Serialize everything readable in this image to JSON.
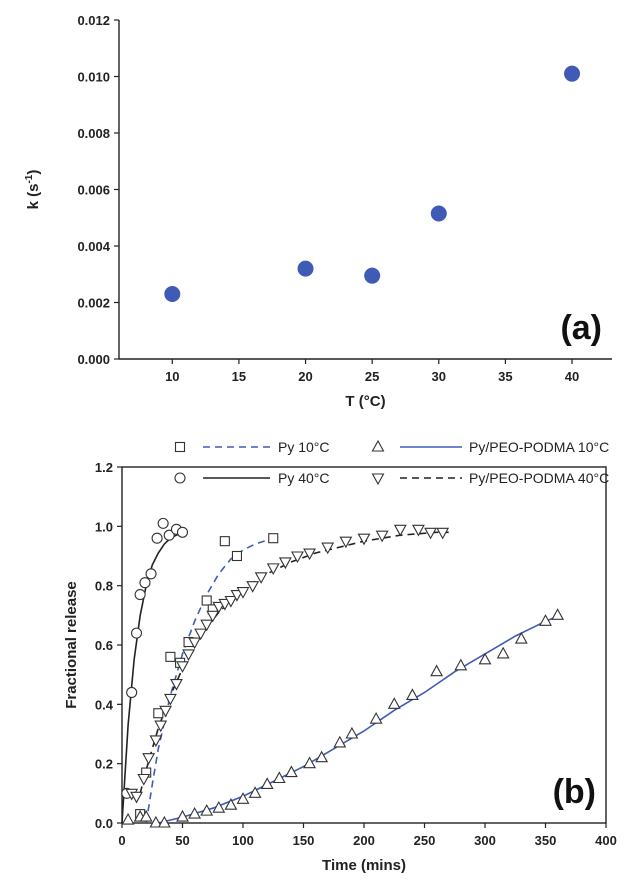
{
  "chart_data": [
    {
      "type": "scatter",
      "panel_label": "(a)",
      "xlabel": "T (°C)",
      "ylabel": "k (s-1)",
      "ylabel_base": "k (s",
      "ylabel_sup": "-1",
      "ylabel_close": ")",
      "xlim": [
        6,
        43
      ],
      "ylim": [
        0,
        0.012
      ],
      "xticks": [
        10,
        15,
        20,
        25,
        30,
        35,
        40
      ],
      "xtick_labels": [
        "10",
        "15",
        "20",
        "25",
        "30",
        "35",
        "40"
      ],
      "yticks": [
        0,
        0.002,
        0.004,
        0.006,
        0.008,
        0.01,
        0.012
      ],
      "ytick_labels": [
        "0.000",
        "0.002",
        "0.004",
        "0.006",
        "0.008",
        "0.010",
        "0.012"
      ],
      "grid": false,
      "marker_color": "#3f5bb5",
      "x": [
        10,
        20,
        25,
        30,
        40
      ],
      "y": [
        0.0023,
        0.0032,
        0.00295,
        0.00515,
        0.0101
      ]
    },
    {
      "type": "scatter",
      "panel_label": "(b)",
      "xlabel": "Time (mins)",
      "ylabel": "Fractional release",
      "xlim": [
        0,
        400
      ],
      "ylim": [
        0,
        1.2
      ],
      "xticks": [
        0,
        50,
        100,
        150,
        200,
        250,
        300,
        350,
        400
      ],
      "xtick_labels": [
        "0",
        "50",
        "100",
        "150",
        "200",
        "250",
        "300",
        "350",
        "400"
      ],
      "yticks": [
        0,
        0.2,
        0.4,
        0.6,
        0.8,
        1.0,
        1.2
      ],
      "ytick_labels": [
        "0.0",
        "0.2",
        "0.4",
        "0.6",
        "0.8",
        "1.0",
        "1.2"
      ],
      "grid": false,
      "legend_placement": "top",
      "series": [
        {
          "name": "Py 40°C",
          "marker": "circle",
          "line_style": "solid",
          "line_color": "#222222",
          "x": [
            4,
            8,
            12,
            15,
            19,
            24,
            29,
            34,
            39,
            45,
            50
          ],
          "y": [
            0.1,
            0.44,
            0.64,
            0.77,
            0.81,
            0.84,
            0.96,
            1.01,
            0.97,
            0.99,
            0.98
          ],
          "fit_x": [
            0,
            5,
            10,
            15,
            20,
            25,
            30,
            35,
            40,
            45,
            50
          ],
          "fit_y": [
            0,
            0.33,
            0.55,
            0.7,
            0.8,
            0.87,
            0.91,
            0.94,
            0.96,
            0.97,
            0.98
          ]
        },
        {
          "name": "Py 10°C",
          "marker": "square",
          "line_style": "dashed",
          "line_color": "#3f5bb5",
          "x": [
            15,
            20,
            30,
            40,
            48,
            55,
            70,
            75,
            85,
            95,
            125
          ],
          "y": [
            0.03,
            0.17,
            0.37,
            0.56,
            0.54,
            0.61,
            0.75,
            0.72,
            0.95,
            0.9,
            0.96
          ],
          "fit_x": [
            20,
            25,
            30,
            40,
            50,
            60,
            70,
            80,
            90,
            100,
            110,
            125
          ],
          "fit_y": [
            0,
            0.13,
            0.25,
            0.43,
            0.57,
            0.68,
            0.77,
            0.84,
            0.89,
            0.92,
            0.94,
            0.96
          ]
        },
        {
          "name": "Py/PEO-PODMA 40°C",
          "marker": "triangle-down",
          "line_style": "dashed",
          "line_color": "#222222",
          "x": [
            8,
            12,
            18,
            22,
            28,
            32,
            36,
            40,
            45,
            50,
            55,
            60,
            65,
            70,
            75,
            80,
            85,
            90,
            95,
            100,
            108,
            115,
            125,
            135,
            145,
            155,
            170,
            185,
            200,
            215,
            230,
            245,
            255,
            265
          ],
          "y": [
            0.1,
            0.09,
            0.15,
            0.22,
            0.28,
            0.33,
            0.38,
            0.42,
            0.47,
            0.53,
            0.57,
            0.61,
            0.64,
            0.67,
            0.7,
            0.73,
            0.74,
            0.75,
            0.77,
            0.78,
            0.8,
            0.83,
            0.86,
            0.88,
            0.9,
            0.91,
            0.93,
            0.95,
            0.96,
            0.97,
            0.99,
            0.99,
            0.98,
            0.98
          ],
          "fit_x": [
            15,
            20,
            25,
            30,
            40,
            50,
            60,
            70,
            80,
            90,
            100,
            120,
            140,
            160,
            180,
            200,
            230,
            260,
            270
          ],
          "fit_y": [
            0.1,
            0.18,
            0.25,
            0.32,
            0.43,
            0.52,
            0.6,
            0.66,
            0.71,
            0.75,
            0.79,
            0.84,
            0.88,
            0.91,
            0.93,
            0.95,
            0.97,
            0.98,
            0.98
          ]
        },
        {
          "name": "Py/PEO-PODMA 10°C",
          "marker": "triangle-up",
          "line_style": "solid",
          "line_color": "#3f5bb5",
          "x": [
            5,
            15,
            20,
            28,
            35,
            50,
            60,
            70,
            80,
            90,
            100,
            110,
            120,
            130,
            140,
            155,
            165,
            180,
            190,
            210,
            225,
            240,
            260,
            280,
            300,
            315,
            330,
            350,
            360
          ],
          "y": [
            0.01,
            0.02,
            0.02,
            0.0,
            0.0,
            0.02,
            0.03,
            0.04,
            0.05,
            0.06,
            0.08,
            0.1,
            0.13,
            0.15,
            0.17,
            0.2,
            0.22,
            0.27,
            0.3,
            0.35,
            0.4,
            0.43,
            0.51,
            0.53,
            0.55,
            0.57,
            0.62,
            0.68,
            0.7
          ],
          "fit_x": [
            30,
            50,
            75,
            100,
            125,
            150,
            175,
            200,
            225,
            250,
            275,
            300,
            325,
            350,
            362
          ],
          "fit_y": [
            0.0,
            0.02,
            0.05,
            0.09,
            0.14,
            0.19,
            0.25,
            0.31,
            0.38,
            0.44,
            0.51,
            0.57,
            0.63,
            0.68,
            0.7
          ]
        }
      ],
      "legend_layout": [
        [
          "Py 10°C",
          "Py/PEO-PODMA 10°C"
        ],
        [
          "Py 40°C",
          "Py/PEO-PODMA 40°C"
        ]
      ]
    }
  ]
}
